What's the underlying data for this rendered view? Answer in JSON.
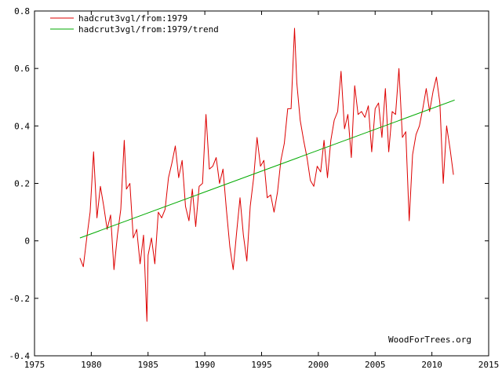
{
  "chart_data": {
    "type": "line",
    "title": "",
    "xlabel": "",
    "ylabel": "",
    "xlim": [
      1975,
      2015
    ],
    "ylim": [
      -0.4,
      0.8
    ],
    "x_ticks": [
      1975,
      1980,
      1985,
      1990,
      1995,
      2000,
      2005,
      2010,
      2015
    ],
    "y_ticks": [
      -0.4,
      -0.2,
      0,
      0.2,
      0.4,
      0.6,
      0.8
    ],
    "y_tick_labels": [
      "-0.4",
      "-0.2",
      "0",
      "0.2",
      "0.4",
      "0.6",
      "0.8"
    ],
    "grid": false,
    "legend_position": "top-left",
    "credit": "WoodForTrees.org",
    "series": [
      {
        "name": "hadcrut3vgl/from:1979",
        "color": "#dd0000",
        "x": [
          1979.0,
          1979.3,
          1979.6,
          1979.9,
          1980.2,
          1980.5,
          1980.8,
          1981.1,
          1981.4,
          1981.7,
          1982.0,
          1982.3,
          1982.6,
          1982.9,
          1983.1,
          1983.4,
          1983.7,
          1984.0,
          1984.3,
          1984.6,
          1984.9,
          1985.0,
          1985.3,
          1985.6,
          1985.9,
          1986.2,
          1986.5,
          1986.8,
          1987.1,
          1987.4,
          1987.7,
          1988.0,
          1988.3,
          1988.6,
          1988.9,
          1989.2,
          1989.5,
          1989.8,
          1990.1,
          1990.4,
          1990.7,
          1991.0,
          1991.3,
          1991.6,
          1991.9,
          1992.2,
          1992.5,
          1992.8,
          1993.1,
          1993.4,
          1993.7,
          1994.0,
          1994.3,
          1994.6,
          1994.9,
          1995.2,
          1995.5,
          1995.8,
          1996.1,
          1996.4,
          1996.7,
          1997.0,
          1997.3,
          1997.6,
          1997.9,
          1998.1,
          1998.4,
          1998.7,
          1999.0,
          1999.3,
          1999.6,
          1999.9,
          2000.2,
          2000.5,
          2000.8,
          2001.1,
          2001.4,
          2001.7,
          2002.0,
          2002.3,
          2002.6,
          2002.9,
          2003.2,
          2003.5,
          2003.8,
          2004.1,
          2004.4,
          2004.7,
          2005.0,
          2005.3,
          2005.6,
          2005.9,
          2006.2,
          2006.5,
          2006.8,
          2007.1,
          2007.4,
          2007.7,
          2008.0,
          2008.3,
          2008.6,
          2008.9,
          2009.2,
          2009.5,
          2009.8,
          2010.1,
          2010.4,
          2010.7,
          2011.0,
          2011.3,
          2011.6,
          2011.9
        ],
        "values": [
          -0.06,
          -0.09,
          0.01,
          0.1,
          0.31,
          0.08,
          0.19,
          0.12,
          0.04,
          0.09,
          -0.1,
          0.02,
          0.11,
          0.35,
          0.18,
          0.2,
          0.01,
          0.04,
          -0.08,
          0.02,
          -0.28,
          -0.05,
          0.01,
          -0.08,
          0.1,
          0.08,
          0.11,
          0.22,
          0.27,
          0.33,
          0.22,
          0.28,
          0.12,
          0.07,
          0.18,
          0.05,
          0.19,
          0.2,
          0.44,
          0.25,
          0.26,
          0.29,
          0.2,
          0.25,
          0.11,
          -0.02,
          -0.1,
          0.03,
          0.15,
          0.02,
          -0.07,
          0.12,
          0.22,
          0.36,
          0.26,
          0.28,
          0.15,
          0.16,
          0.1,
          0.17,
          0.28,
          0.34,
          0.46,
          0.46,
          0.74,
          0.55,
          0.42,
          0.35,
          0.29,
          0.21,
          0.19,
          0.26,
          0.24,
          0.35,
          0.22,
          0.35,
          0.42,
          0.45,
          0.59,
          0.39,
          0.44,
          0.29,
          0.54,
          0.44,
          0.45,
          0.43,
          0.47,
          0.31,
          0.46,
          0.48,
          0.36,
          0.53,
          0.31,
          0.45,
          0.44,
          0.6,
          0.36,
          0.38,
          0.07,
          0.3,
          0.37,
          0.4,
          0.46,
          0.53,
          0.45,
          0.52,
          0.57,
          0.48,
          0.2,
          0.4,
          0.32,
          0.23
        ]
      },
      {
        "name": "hadcrut3vgl/from:1979/trend",
        "color": "#00aa00",
        "x": [
          1979.0,
          2012.0
        ],
        "values": [
          0.01,
          0.49
        ]
      }
    ]
  }
}
